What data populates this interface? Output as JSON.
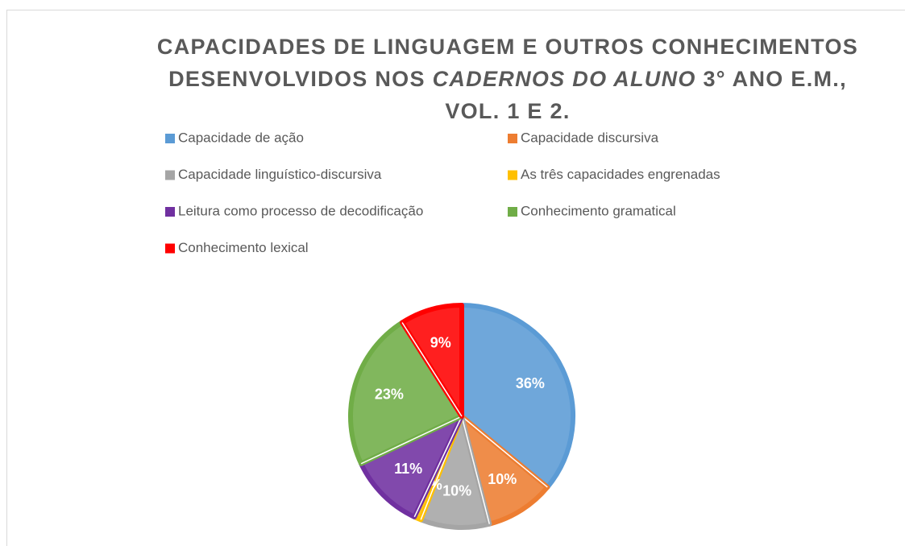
{
  "chart_data": {
    "type": "pie",
    "title": [
      "CAPACIDADES DE LINGUAGEM E OUTROS CONHECIMENTOS DESENVOLVIDOS NOS ",
      "CADERNOS DO ALUNO",
      " 3° ANO E.M., VOL. 1 E 2."
    ],
    "categories": [
      "Capacidade de ação",
      "Capacidade discursiva",
      "Capacidade linguístico-discursiva",
      "As três capacidades engrenadas",
      "Leitura como processo de decodificação",
      "Conhecimento gramatical",
      "Conhecimento lexical"
    ],
    "values": [
      36,
      10,
      10,
      1,
      11,
      23,
      9
    ],
    "colors": [
      "#5b9bd5",
      "#ed7d31",
      "#a5a5a5",
      "#ffc000",
      "#7030a0",
      "#70ad47",
      "#ff0000"
    ],
    "legend": "top"
  }
}
